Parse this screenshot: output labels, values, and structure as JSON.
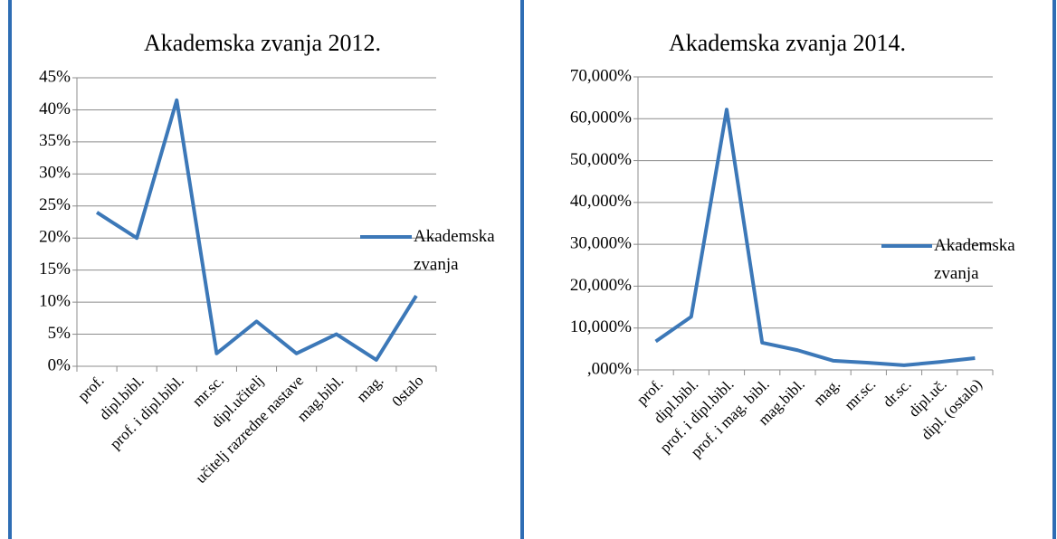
{
  "chart_data": [
    {
      "type": "line",
      "title": "Akademska zvanja 2012.",
      "categories": [
        "prof.",
        "dipl.bibl.",
        "prof. i dipl.bibl.",
        "mr.sc.",
        "dipl.učitelj",
        "učitelj razredne nastave",
        "mag.bibl.",
        "mag.",
        "0stalo"
      ],
      "series": [
        {
          "name": "Akademska zvanja",
          "color": "#3c78b8",
          "values": [
            24,
            20,
            41.5,
            2,
            7,
            2,
            5,
            1,
            11
          ]
        }
      ],
      "ylim": [
        0,
        45
      ],
      "yticks": [
        {
          "value": 0,
          "label": "0%"
        },
        {
          "value": 5,
          "label": "5%"
        },
        {
          "value": 10,
          "label": "10%"
        },
        {
          "value": 15,
          "label": "15%"
        },
        {
          "value": 20,
          "label": "20%"
        },
        {
          "value": 25,
          "label": "25%"
        },
        {
          "value": 30,
          "label": "30%"
        },
        {
          "value": 35,
          "label": "35%"
        },
        {
          "value": 40,
          "label": "40%"
        },
        {
          "value": 45,
          "label": "45%"
        }
      ],
      "grid": true,
      "legend": "right"
    },
    {
      "type": "line",
      "title": "Akademska zvanja 2014.",
      "categories": [
        "prof.",
        "dipl.bibl.",
        "prof. i dipl.bibl.",
        "prof. i mag. bibl.",
        "mag.bibl.",
        "mag.",
        "mr.sc.",
        "dr.sc.",
        "dipl.uč.",
        "dipl. (ostalo)"
      ],
      "series": [
        {
          "name": "Akademska zvanja",
          "color": "#3c78b8",
          "values": [
            6.8,
            12.7,
            62.2,
            6.5,
            4.7,
            2.2,
            1.7,
            1.1,
            1.9,
            2.8
          ]
        }
      ],
      "ylim": [
        0,
        70
      ],
      "yticks": [
        {
          "value": 0,
          "label": ",000%"
        },
        {
          "value": 10,
          "label": "10,000%"
        },
        {
          "value": 20,
          "label": "20,000%"
        },
        {
          "value": 30,
          "label": "30,000%"
        },
        {
          "value": 40,
          "label": "40,000%"
        },
        {
          "value": 50,
          "label": "50,000%"
        },
        {
          "value": 60,
          "label": "60,000%"
        },
        {
          "value": 70,
          "label": "70,000%"
        }
      ],
      "grid": true,
      "legend": "right"
    }
  ]
}
